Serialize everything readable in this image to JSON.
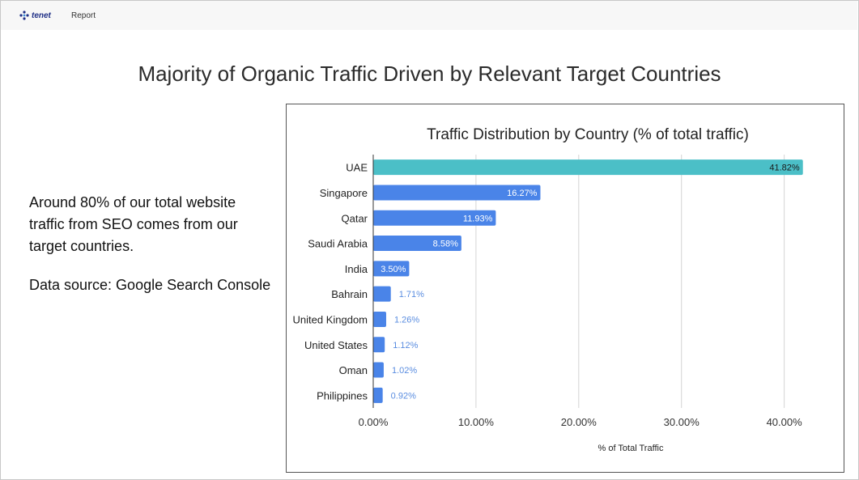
{
  "header": {
    "logo_text": "tenet",
    "nav_report": "Report"
  },
  "slide": {
    "title": "Majority of Organic Traffic Driven by Relevant Target Countries",
    "description": "Around 80% of our total website traffic from SEO comes from our target countries.",
    "source": "Data source: Google Search Console"
  },
  "colors": {
    "highlight_bar": "#4bbfc7",
    "bar": "#4a84e8",
    "label_outside": "#5a8de0"
  },
  "chart_data": {
    "type": "bar",
    "orientation": "horizontal",
    "title": "Traffic Distribution by Country (% of total traffic)",
    "xlabel": "% of Total Traffic",
    "ylabel": "",
    "categories": [
      "UAE",
      "Singapore",
      "Qatar",
      "Saudi Arabia",
      "India",
      "Bahrain",
      "United Kingdom",
      "United States",
      "Oman",
      "Philippines"
    ],
    "values": [
      41.82,
      16.27,
      11.93,
      8.58,
      3.5,
      1.71,
      1.26,
      1.12,
      1.02,
      0.92
    ],
    "data_labels": [
      "41.82%",
      "16.27%",
      "11.93%",
      "8.58%",
      "3.50%",
      "1.71%",
      "1.26%",
      "1.12%",
      "1.02%",
      "0.92%"
    ],
    "xlim": [
      0,
      42
    ],
    "xticks": [
      0,
      10,
      20,
      30,
      40
    ],
    "xtick_labels": [
      "0.00%",
      "10.00%",
      "20.00%",
      "30.00%",
      "40.00%"
    ],
    "grid": true,
    "legend": "none"
  }
}
